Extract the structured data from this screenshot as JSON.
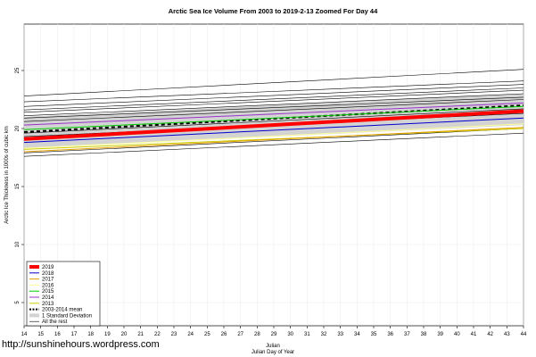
{
  "chart_data": {
    "type": "line",
    "title": "Arctic Sea Ice Volume From 2003 to 2019-2-13 Zoomed For Day 44",
    "xlabel": "Julian",
    "xlabel2": "Julian Day of Year",
    "ylabel": "Arctic Ice Thickness in 1000s of cubic km",
    "xlim": [
      14,
      44
    ],
    "ylim": [
      3,
      29
    ],
    "x_ticks": [
      14,
      15,
      16,
      17,
      18,
      19,
      20,
      21,
      22,
      23,
      24,
      25,
      26,
      27,
      28,
      29,
      30,
      31,
      32,
      33,
      34,
      35,
      36,
      37,
      38,
      39,
      40,
      41,
      42,
      43,
      44
    ],
    "y_ticks": [
      5,
      10,
      15,
      20,
      25
    ],
    "y_tick_labels": [
      "5",
      "10",
      "15",
      "20",
      "25"
    ],
    "grid": true,
    "legend_position": "bottom-left",
    "x": [
      14,
      44
    ],
    "band": {
      "name": "1 Standard Deviation",
      "color": "#d3d3d3",
      "lower": [
        18.3,
        20.3
      ],
      "upper": [
        21.0,
        23.0
      ]
    },
    "series": [
      {
        "name": "2019",
        "color": "#ff0000",
        "width": 4,
        "dash": "",
        "values": [
          19.1,
          21.5
        ]
      },
      {
        "name": "2018",
        "color": "#0000cd",
        "width": 1,
        "dash": "",
        "values": [
          18.8,
          20.9
        ]
      },
      {
        "name": "2017",
        "color": "#e6a000",
        "width": 1,
        "dash": "",
        "values": [
          18.0,
          20.1
        ]
      },
      {
        "name": "2016",
        "color": "#ffff99",
        "width": 1,
        "dash": "",
        "values": [
          18.3,
          20.4
        ]
      },
      {
        "name": "2015",
        "color": "#00cc00",
        "width": 1,
        "dash": "",
        "values": [
          19.9,
          21.9
        ]
      },
      {
        "name": "2014",
        "color": "#9933cc",
        "width": 1,
        "dash": "",
        "values": [
          20.3,
          22.2
        ]
      },
      {
        "name": "2013",
        "color": "#cccc00",
        "width": 1,
        "dash": "",
        "values": [
          18.2,
          20.0
        ]
      },
      {
        "name": "2003-2014 mean",
        "color": "#000000",
        "width": 2,
        "dash": "4,3",
        "values": [
          19.7,
          22.0
        ]
      }
    ],
    "other_series": [
      [
        22.8,
        25.1
      ],
      [
        22.3,
        24.1
      ],
      [
        21.9,
        23.8
      ],
      [
        21.6,
        23.5
      ],
      [
        21.4,
        23.3
      ],
      [
        21.1,
        23.0
      ],
      [
        20.9,
        22.7
      ],
      [
        20.6,
        22.5
      ],
      [
        19.6,
        21.7
      ],
      [
        19.3,
        21.3
      ],
      [
        17.9,
        20.0
      ],
      [
        17.6,
        19.6
      ]
    ],
    "other_series_name": "All the rest",
    "other_series_color": "#000000"
  },
  "watermark": "http://sunshinehours.wordpress.com"
}
